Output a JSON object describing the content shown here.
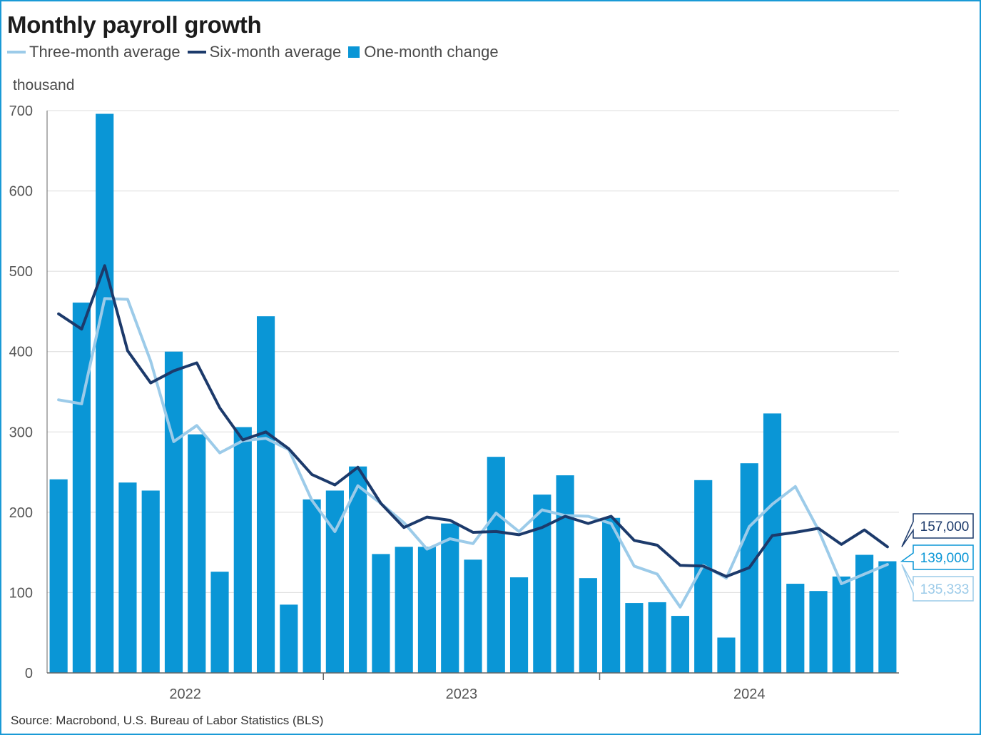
{
  "colors": {
    "three_month": "#9ccbe9",
    "six_month": "#1c3a6b",
    "one_month": "#0a96d6",
    "grid": "#dcdcdc",
    "axis": "#666666"
  },
  "legend": {
    "three_month": "Three-month average",
    "six_month": "Six-month average",
    "one_month": "One-month change"
  },
  "source": "Source: Macrobond, U.S. Bureau of Labor Statistics (BLS)",
  "chart_data": {
    "type": "bar",
    "title": "Monthly payroll growth",
    "ylabel": "thousand",
    "ylim": [
      0,
      700
    ],
    "yticks": [
      0,
      100,
      200,
      300,
      400,
      500,
      600,
      700
    ],
    "grid": true,
    "legend_placement": "top-left",
    "year_labels": [
      {
        "label": "2022",
        "start_index": 0
      },
      {
        "label": "2023",
        "start_index": 12
      },
      {
        "label": "2024",
        "start_index": 24
      }
    ],
    "series": [
      {
        "name": "One-month change",
        "type": "bar",
        "values": [
          241,
          461,
          696,
          237,
          227,
          400,
          297,
          126,
          306,
          444,
          85,
          216,
          227,
          257,
          148,
          157,
          157,
          186,
          141,
          269,
          119,
          222,
          246,
          118,
          193,
          87,
          88,
          71,
          240,
          44,
          261,
          323,
          111,
          102,
          120,
          147,
          139
        ]
      },
      {
        "name": "Three-month average",
        "type": "line",
        "values": [
          340,
          335,
          466,
          465,
          388,
          288,
          308,
          274,
          289,
          292,
          278,
          215,
          176,
          233,
          211,
          187,
          154,
          167,
          161,
          199,
          176,
          203,
          196,
          195,
          186,
          133,
          123,
          82,
          134,
          118,
          182,
          210,
          232,
          178,
          111,
          123,
          135
        ]
      },
      {
        "name": "Six-month average",
        "type": "line",
        "values": [
          447,
          428,
          507,
          401,
          361,
          376,
          386,
          330,
          290,
          300,
          279,
          247,
          234,
          256,
          211,
          181,
          194,
          190,
          175,
          176,
          172,
          181,
          195,
          186,
          195,
          165,
          159,
          134,
          133,
          120,
          131,
          171,
          175,
          180,
          160,
          178,
          157
        ]
      }
    ],
    "end_labels": [
      {
        "series": "Six-month average",
        "text": "157,000"
      },
      {
        "series": "One-month change",
        "text": "139,000"
      },
      {
        "series": "Three-month average",
        "text": "135,333"
      }
    ]
  }
}
